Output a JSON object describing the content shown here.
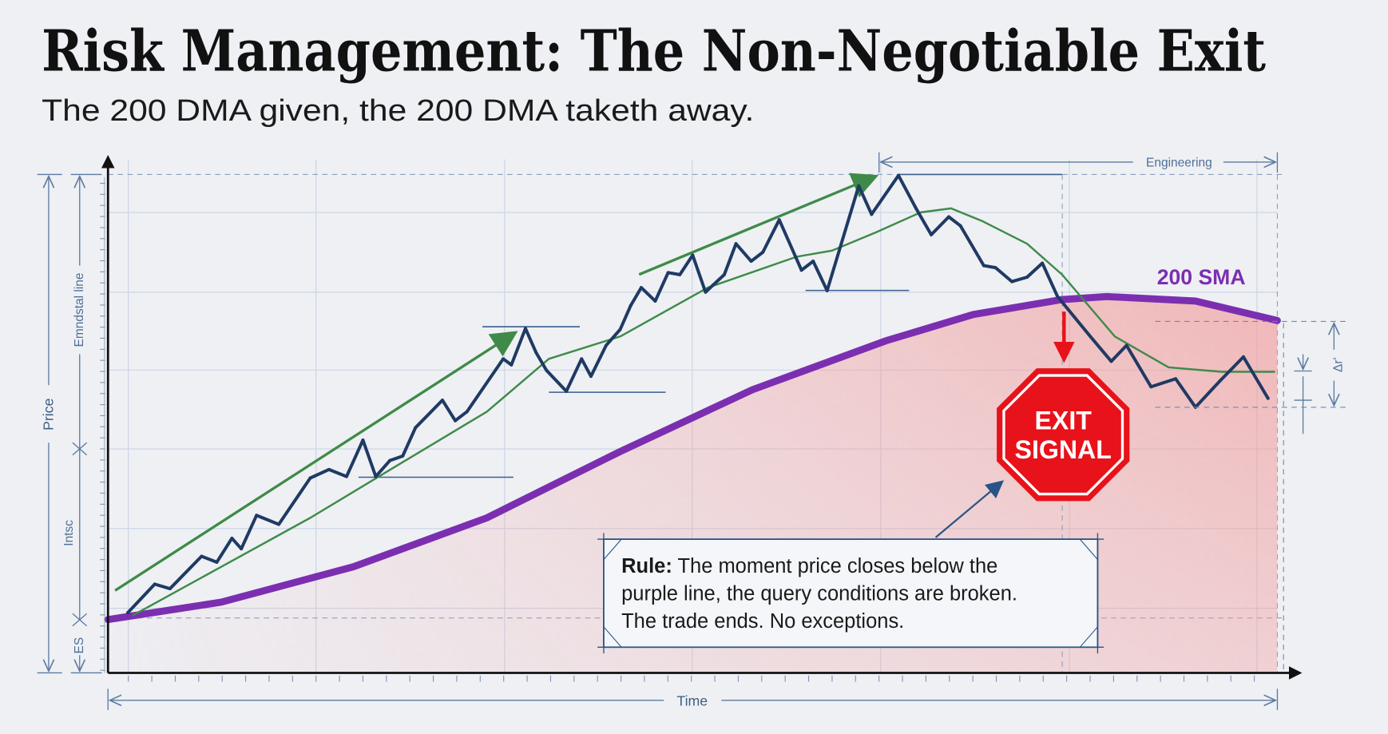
{
  "title": "Risk Management: The Non-Negotiable Exit",
  "subtitle": "The 200 DMA given, the 200 DMA taketh away.",
  "annotations": {
    "engineering": "Engineering",
    "sma_label": "200 SMA",
    "exit_line1": "EXIT",
    "exit_line2": "SIGNAL",
    "rule_bold": "Rule:",
    "rule_line1": " The moment price closes below the",
    "rule_line2": "purple line, the query conditions are broken.",
    "rule_line3": "The trade ends. No exceptions.",
    "left_dim_1": "Emndstal line",
    "left_dim_2": "Intsc",
    "left_dim_3": "ES",
    "right_dim": "Δr'"
  },
  "colors": {
    "price": "#1f3a63",
    "trend_ma": "#3f8a48",
    "sma": "#7b2fb0",
    "exit_red": "#e8121a",
    "danger_fill": "#f29a9a",
    "annotation_blue": "#2a5487"
  },
  "chart_data": {
    "type": "line",
    "xlabel": "Time",
    "ylabel": "Price",
    "xlim": [
      0,
      100
    ],
    "ylim": [
      0,
      100
    ],
    "grid": true,
    "series": [
      {
        "key": "price",
        "points": [
          [
            1.7,
            12.1
          ],
          [
            4.0,
            17.8
          ],
          [
            5.3,
            16.9
          ],
          [
            8.0,
            23.4
          ],
          [
            9.3,
            22.2
          ],
          [
            10.6,
            27.0
          ],
          [
            11.4,
            24.9
          ],
          [
            12.7,
            31.6
          ],
          [
            14.6,
            29.8
          ],
          [
            17.3,
            39.1
          ],
          [
            18.9,
            40.8
          ],
          [
            20.4,
            39.4
          ],
          [
            21.8,
            46.7
          ],
          [
            22.9,
            39.4
          ],
          [
            24.1,
            42.6
          ],
          [
            25.2,
            43.5
          ],
          [
            26.3,
            49.2
          ],
          [
            28.6,
            54.7
          ],
          [
            29.7,
            50.6
          ],
          [
            30.7,
            52.4
          ],
          [
            33.8,
            63.0
          ],
          [
            34.5,
            61.8
          ],
          [
            35.7,
            69.1
          ],
          [
            36.6,
            64.3
          ],
          [
            37.5,
            60.7
          ],
          [
            39.2,
            56.5
          ],
          [
            40.5,
            63.0
          ],
          [
            41.3,
            59.5
          ],
          [
            42.6,
            65.7
          ],
          [
            43.8,
            68.9
          ],
          [
            44.7,
            73.7
          ],
          [
            45.6,
            77.3
          ],
          [
            46.8,
            74.6
          ],
          [
            47.9,
            80.3
          ],
          [
            48.9,
            79.9
          ],
          [
            50.0,
            83.8
          ],
          [
            51.1,
            76.4
          ],
          [
            52.7,
            79.9
          ],
          [
            53.7,
            86.1
          ],
          [
            55.0,
            82.6
          ],
          [
            56.0,
            84.4
          ],
          [
            57.4,
            90.9
          ],
          [
            59.3,
            80.8
          ],
          [
            60.3,
            82.6
          ],
          [
            61.5,
            76.7
          ],
          [
            64.2,
            97.7
          ],
          [
            65.3,
            92.0
          ],
          [
            67.6,
            99.8
          ],
          [
            69.1,
            93.2
          ],
          [
            70.4,
            87.9
          ],
          [
            71.9,
            91.5
          ],
          [
            72.9,
            89.7
          ],
          [
            74.9,
            81.7
          ],
          [
            75.9,
            81.3
          ],
          [
            77.3,
            78.5
          ],
          [
            78.6,
            79.4
          ],
          [
            79.9,
            82.2
          ],
          [
            81.2,
            75.5
          ],
          [
            83.9,
            67.8
          ],
          [
            85.8,
            62.5
          ],
          [
            87.1,
            65.7
          ],
          [
            89.2,
            57.4
          ],
          [
            91.3,
            59.0
          ],
          [
            93.0,
            53.3
          ],
          [
            95.1,
            58.6
          ],
          [
            97.1,
            63.4
          ],
          [
            99.2,
            55.1
          ]
        ]
      },
      {
        "key": "trend_ma",
        "points": [
          [
            2.1,
            11.5
          ],
          [
            9.7,
            21.3
          ],
          [
            17.3,
            31.1
          ],
          [
            24.8,
            41.7
          ],
          [
            32.4,
            52.4
          ],
          [
            37.7,
            63.0
          ],
          [
            43.8,
            67.5
          ],
          [
            51.3,
            77.3
          ],
          [
            58.9,
            83.5
          ],
          [
            61.9,
            84.7
          ],
          [
            65.7,
            88.4
          ],
          [
            69.5,
            92.4
          ],
          [
            72.1,
            93.2
          ],
          [
            74.8,
            90.6
          ],
          [
            78.6,
            86.1
          ],
          [
            81.6,
            79.9
          ],
          [
            86.1,
            67.5
          ],
          [
            90.7,
            61.3
          ],
          [
            95.2,
            60.4
          ],
          [
            99.8,
            60.4
          ]
        ]
      },
      {
        "key": "sma",
        "name": "200 SMA",
        "points": [
          [
            0,
            10.7
          ],
          [
            9.7,
            14.2
          ],
          [
            21.0,
            21.3
          ],
          [
            32.4,
            31.1
          ],
          [
            43.8,
            44.4
          ],
          [
            55.1,
            56.8
          ],
          [
            66.5,
            66.6
          ],
          [
            74.0,
            71.9
          ],
          [
            81.6,
            74.9
          ],
          [
            85.4,
            75.5
          ],
          [
            93.0,
            74.6
          ],
          [
            100,
            70.7
          ]
        ]
      }
    ]
  }
}
